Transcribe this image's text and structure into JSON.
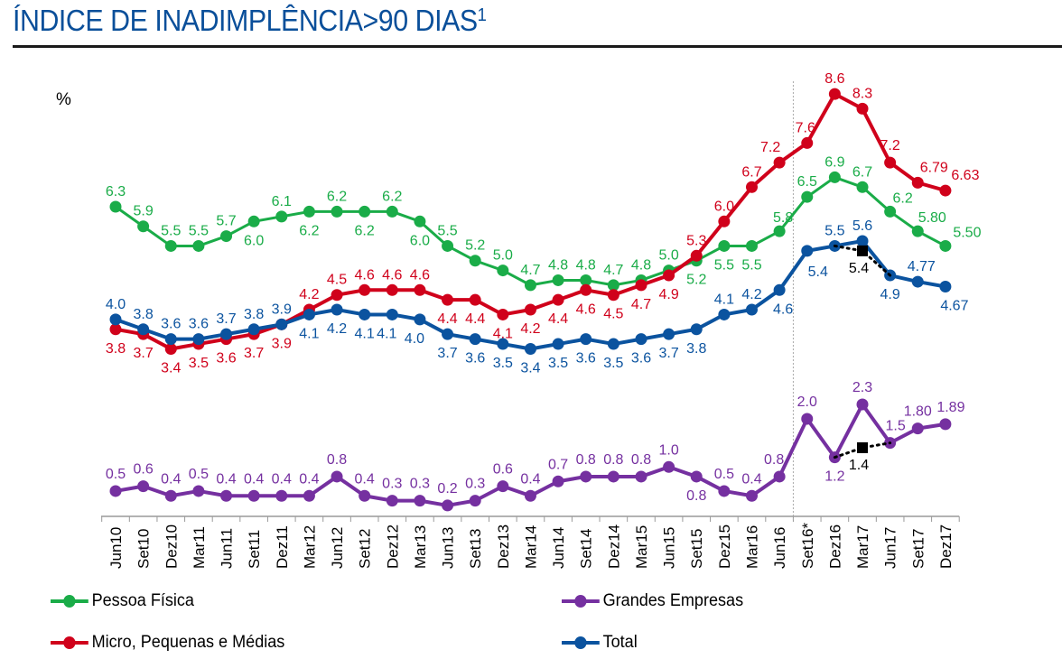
{
  "header": {
    "title": "ÍNDICE DE INADIMPLÊNCIA>90 DIAS",
    "title_footnote": "1"
  },
  "chart_data": {
    "type": "line",
    "title": "ÍNDICE DE INADIMPLÊNCIA>90 DIAS",
    "ylabel": "%",
    "xlabel": "",
    "grid": false,
    "legend_position": "bottom",
    "vertical_marker_after": "Jun16",
    "categories": [
      "Jun10",
      "Set10",
      "Dez10",
      "Mar11",
      "Jun11",
      "Set11",
      "Dez11",
      "Mar12",
      "Jun12",
      "Set12",
      "Dez12",
      "Mar13",
      "Jun13",
      "Set13",
      "Dez13",
      "Mar14",
      "Jun14",
      "Set14",
      "Dez14",
      "Mar15",
      "Jun15",
      "Set15",
      "Dez15",
      "Mar16",
      "Jun16",
      "Set16*",
      "Dez16",
      "Mar17",
      "Jun17",
      "Set17",
      "Dez17"
    ],
    "series": [
      {
        "name": "Pessoa Física",
        "color": "#1aac48",
        "values": [
          6.3,
          5.9,
          5.5,
          5.5,
          5.7,
          6.0,
          6.1,
          6.2,
          6.2,
          6.2,
          6.2,
          6.0,
          5.5,
          5.2,
          5.0,
          4.7,
          4.8,
          4.8,
          4.7,
          4.8,
          5.0,
          5.2,
          5.5,
          5.5,
          5.8,
          6.5,
          6.9,
          6.7,
          6.2,
          5.8,
          5.5
        ],
        "labels": [
          "6.3",
          "5.9",
          "5.5",
          "5.5",
          "5.7",
          "6.0",
          "6.1",
          "6.2",
          "6.2",
          "6.2",
          "6.2",
          "6.0",
          "5.5",
          "5.2",
          "5.0",
          "4.7",
          "4.8",
          "4.8",
          "4.7",
          "4.8",
          "5.0",
          "5.2",
          "5.5",
          "5.5",
          "5.8",
          "6.5",
          "6.9",
          "6.7",
          "6.2",
          "5.80",
          "5.50"
        ]
      },
      {
        "name": "Micro, Pequenas e Médias",
        "color": "#d0011b",
        "values": [
          3.8,
          3.7,
          3.4,
          3.5,
          3.6,
          3.7,
          3.9,
          4.2,
          4.5,
          4.6,
          4.6,
          4.6,
          4.4,
          4.4,
          4.1,
          4.2,
          4.4,
          4.6,
          4.5,
          4.7,
          4.9,
          5.3,
          6.0,
          6.7,
          7.2,
          7.6,
          8.6,
          8.3,
          7.2,
          6.79,
          6.63
        ],
        "labels": [
          "3.8",
          "3.7",
          "3.4",
          "3.5",
          "3.6",
          "3.7",
          "3.9",
          "4.2",
          "4.5",
          "4.6",
          "4.6",
          "4.6",
          "4.4",
          "4.4",
          "4.1",
          "4.2",
          "4.4",
          "4.6",
          "4.5",
          "4.7",
          "4.9",
          "5.3",
          "6.0",
          "6.7",
          "7.2",
          "7.6",
          "8.6",
          "8.3",
          "7.2",
          "6.79",
          "6.63"
        ]
      },
      {
        "name": "Total",
        "color": "#0b539f",
        "values": [
          4.0,
          3.8,
          3.6,
          3.6,
          3.7,
          3.8,
          3.9,
          4.1,
          4.2,
          4.1,
          4.1,
          4.0,
          3.7,
          3.6,
          3.5,
          3.4,
          3.5,
          3.6,
          3.5,
          3.6,
          3.7,
          3.8,
          4.1,
          4.2,
          4.6,
          5.4,
          5.5,
          5.6,
          4.9,
          4.77,
          4.67
        ],
        "labels": [
          "4.0",
          "3.8",
          "3.6",
          "3.6",
          "3.7",
          "3.8",
          "3.9",
          "4.1",
          "4.2",
          "4.1",
          "4.1",
          "4.0",
          "3.7",
          "3.6",
          "3.5",
          "3.4",
          "3.5",
          "3.6",
          "3.5",
          "3.6",
          "3.7",
          "3.8",
          "4.1",
          "4.2",
          "4.6",
          "5.4",
          "5.5",
          "5.6",
          "4.9",
          "4.77",
          "4.67"
        ]
      },
      {
        "name": "Grandes Empresas",
        "color": "#7530a0",
        "values": [
          0.5,
          0.6,
          0.4,
          0.5,
          0.4,
          0.4,
          0.4,
          0.4,
          0.8,
          0.4,
          0.3,
          0.3,
          0.2,
          0.3,
          0.6,
          0.4,
          0.7,
          0.8,
          0.8,
          0.8,
          1.0,
          0.8,
          0.5,
          0.4,
          0.8,
          2.0,
          1.2,
          2.3,
          1.5,
          1.8,
          1.89
        ],
        "labels": [
          "0.5",
          "0.6",
          "0.4",
          "0.5",
          "0.4",
          "0.4",
          "0.4",
          "0.4",
          "0.8",
          "0.4",
          "0.3",
          "0.3",
          "0.2",
          "0.3",
          "0.6",
          "0.4",
          "0.7",
          "0.8",
          "0.8",
          "0.8",
          "1.0",
          "0.8",
          "0.5",
          "0.4",
          "0.8",
          "2.0",
          "1.2",
          "2.3",
          "1.5",
          "1.80",
          "1.89"
        ]
      }
    ],
    "annotations": [
      {
        "series": "Total",
        "category": "Mar17",
        "adjusted_value": 5.4,
        "label": "5.4",
        "style": "dotted"
      },
      {
        "series": "Grandes Empresas",
        "category": "Mar17",
        "adjusted_value": 1.4,
        "label": "1.4",
        "style": "dotted"
      }
    ]
  },
  "legend": [
    {
      "name": "Pessoa Física",
      "color": "#1aac48"
    },
    {
      "name": "Grandes Empresas",
      "color": "#7530a0"
    },
    {
      "name": "Micro, Pequenas e Médias",
      "color": "#d0011b"
    },
    {
      "name": "Total",
      "color": "#0b539f"
    }
  ]
}
